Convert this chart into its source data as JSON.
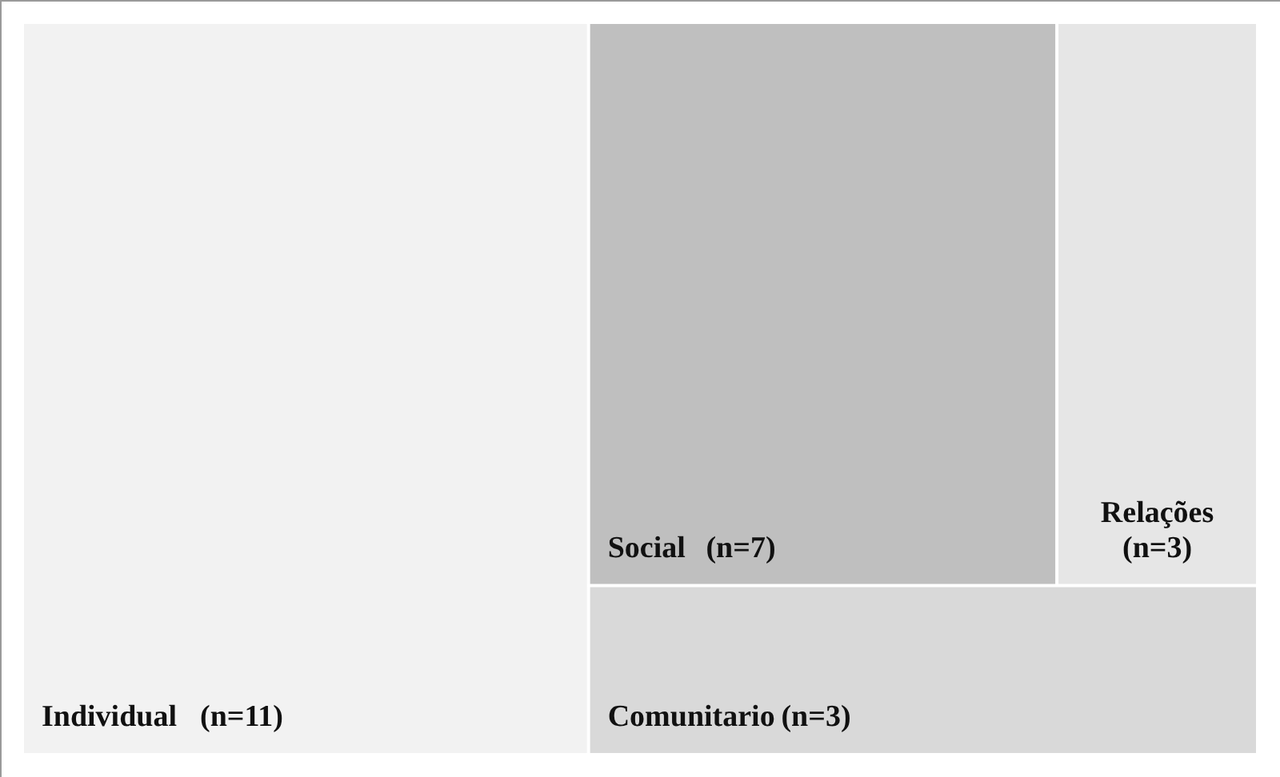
{
  "chart_data": {
    "type": "other",
    "categories": [
      "Individual",
      "Social",
      "Relações",
      "Comunitario"
    ],
    "values": [
      11,
      7,
      3,
      3
    ],
    "value_labels": [
      "(n=11)",
      "(n=7)",
      "(n=3)",
      "(n=3)"
    ],
    "colors": [
      "#f2f2f2",
      "#bfbfbf",
      "#e6e6e6",
      "#d9d9d9"
    ]
  }
}
